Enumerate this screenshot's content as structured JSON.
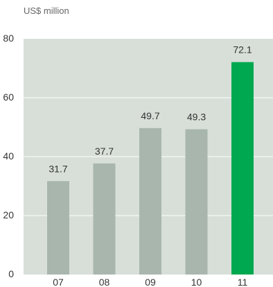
{
  "chart_data": {
    "type": "bar",
    "unit_label": "US$ million",
    "categories": [
      "07",
      "08",
      "09",
      "10",
      "11"
    ],
    "values": [
      31.7,
      37.7,
      49.7,
      49.3,
      72.1
    ],
    "value_labels": [
      "31.7",
      "37.7",
      "49.7",
      "49.3",
      "72.1"
    ],
    "ylim": [
      0,
      80
    ],
    "yticks": [
      0,
      20,
      40,
      60,
      80
    ],
    "ytick_labels": [
      "0",
      "20",
      "40",
      "60",
      "80"
    ],
    "grid": true,
    "colors": {
      "plot_background": "#d7dfd8",
      "grid": "#ffffff",
      "bar_default": "#a8b6ae",
      "bar_highlight": "#00a84f",
      "text": "#333333",
      "muted_text": "#666666"
    },
    "highlight_index": 4
  }
}
